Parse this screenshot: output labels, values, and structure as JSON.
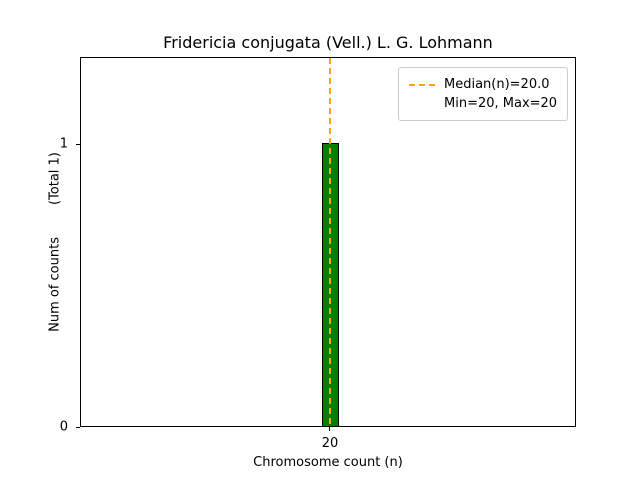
{
  "title": "Fridericia conjugata (Vell.) L. G. Lohmann",
  "axes": {
    "xlabel": "Chromosome count (n)",
    "ylabel": "Num of counts",
    "ylabel_total": "(Total 1)",
    "xtick": "20",
    "ytick_zero": "0",
    "ytick_one": "1"
  },
  "legend": {
    "median_label": "Median(n)=20.0",
    "minmax_label": "Min=20, Max=20"
  },
  "colors": {
    "bar_fill": "#008000",
    "bar_edge": "#000000",
    "median_line": "#ffa500",
    "legend_border": "#cccccc",
    "axes_border": "#000000"
  },
  "chart_data": {
    "type": "bar",
    "categories": [
      20
    ],
    "values": [
      1
    ],
    "title": "Fridericia conjugata (Vell.) L. G. Lohmann",
    "xlabel": "Chromosome count (n)",
    "ylabel": "Num of counts (Total 1)",
    "ylim": [
      0,
      1.3
    ],
    "total": 1,
    "median": 20.0,
    "min": 20,
    "max": 20,
    "grid": false,
    "legend_position": "upper right",
    "legend_entries": [
      "Median(n)=20.0",
      "Min=20, Max=20"
    ],
    "bar_color": "green",
    "median_line_style": "dashed orange vertical line at x=20"
  }
}
